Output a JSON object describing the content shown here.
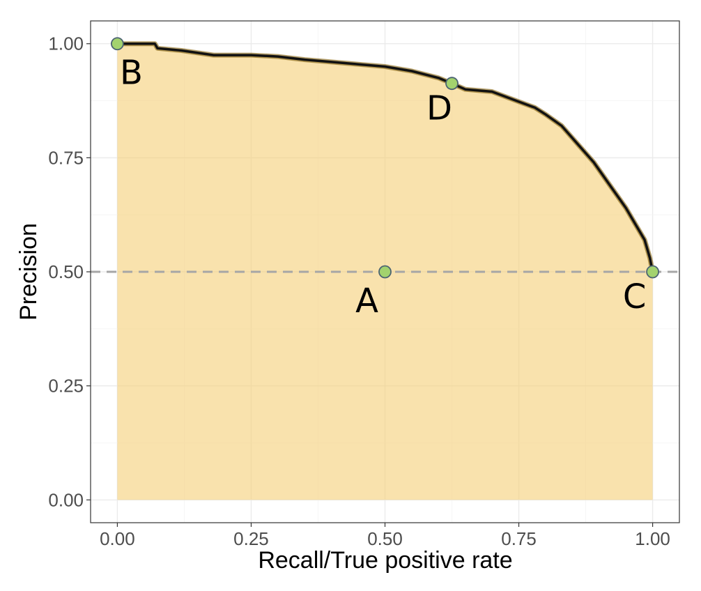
{
  "chart_data": {
    "type": "area",
    "xlabel": "Recall/True positive rate",
    "ylabel": "Precision",
    "xlim": [
      -0.05,
      1.05
    ],
    "ylim": [
      -0.05,
      1.05
    ],
    "x_ticks": [
      0.0,
      0.25,
      0.5,
      0.75,
      1.0
    ],
    "x_tick_labels": [
      "0.00",
      "0.25",
      "0.50",
      "0.75",
      "1.00"
    ],
    "y_ticks": [
      0.0,
      0.25,
      0.5,
      0.75,
      1.0
    ],
    "y_tick_labels": [
      "0.00",
      "0.25",
      "0.50",
      "0.75",
      "1.00"
    ],
    "grid": true,
    "baseline": {
      "y": 0.5,
      "style": "dashed",
      "color": "#a6a6a6"
    },
    "fill_color": "#f5d17b",
    "line_color": "#111111",
    "point_color": "#a3d26e",
    "series": [
      {
        "x": [
          0.0,
          0.03,
          0.07,
          0.075,
          0.12,
          0.18,
          0.25,
          0.3,
          0.35,
          0.4,
          0.45,
          0.5,
          0.55,
          0.6,
          0.625,
          0.65,
          0.7,
          0.75,
          0.78,
          0.8,
          0.83,
          0.86,
          0.89,
          0.92,
          0.95,
          0.97,
          0.985,
          0.995,
          1.0
        ],
        "y": [
          1.0,
          1.0,
          1.0,
          0.99,
          0.985,
          0.975,
          0.975,
          0.972,
          0.965,
          0.96,
          0.955,
          0.95,
          0.94,
          0.925,
          0.913,
          0.9,
          0.895,
          0.873,
          0.86,
          0.845,
          0.82,
          0.78,
          0.74,
          0.69,
          0.64,
          0.6,
          0.57,
          0.53,
          0.5
        ]
      }
    ],
    "points": [
      {
        "label": "A",
        "x": 0.5,
        "y": 0.5
      },
      {
        "label": "B",
        "x": 0.0,
        "y": 1.0
      },
      {
        "label": "C",
        "x": 1.0,
        "y": 0.5
      },
      {
        "label": "D",
        "x": 0.625,
        "y": 0.913
      }
    ]
  }
}
